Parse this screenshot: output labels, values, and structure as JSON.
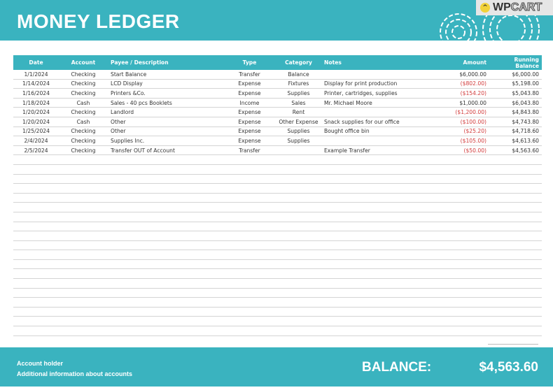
{
  "header": {
    "title": "MONEY LEDGER",
    "logo_text": "WPCART",
    "accent": "#3ab3bf"
  },
  "table": {
    "columns": [
      "Date",
      "Account",
      "Payee / Description",
      "Type",
      "Category",
      "Notes",
      "Amount",
      "Running Balance"
    ],
    "rows": [
      [
        "1/1/2024",
        "Checking",
        "Start Balance",
        "Transfer",
        "Balance",
        "",
        "$6,000.00",
        "$6,000.00"
      ],
      [
        "1/14/2024",
        "Checking",
        "LCD Display",
        "Expense",
        "Fixtures",
        "Display for print production",
        "($802.00)",
        "$5,198.00"
      ],
      [
        "1/16/2024",
        "Checking",
        "Printers &Co.",
        "Expense",
        "Supplies",
        "Printer, cartridges, supplies",
        "($154.20)",
        "$5,043.80"
      ],
      [
        "1/18/2024",
        "Cash",
        "Sales - 40 pcs Booklets",
        "Income",
        "Sales",
        "Mr. Michael Moore",
        "$1,000.00",
        "$6,043.80"
      ],
      [
        "1/20/2024",
        "Checking",
        "Landlord",
        "Expense",
        "Rent",
        "",
        "($1,200.00)",
        "$4,843.80"
      ],
      [
        "1/20/2024",
        "Cash",
        "Other",
        "Expense",
        "Other Expense",
        "Snack supplies for our office",
        "($100.00)",
        "$4,743.80"
      ],
      [
        "1/25/2024",
        "Checking",
        "Other",
        "Expense",
        "Supplies",
        "Bought office bin",
        "($25.20)",
        "$4,718.60"
      ],
      [
        "2/4/2024",
        "Checking",
        "Supplies Inc.",
        "Expense",
        "Supplies",
        "",
        "($105.00)",
        "$4,613.60"
      ],
      [
        "2/5/2024",
        "Checking",
        "Transfer OUT of Account",
        "Transfer",
        "",
        "Example Transfer",
        "($50.00)",
        "$4,563.60"
      ]
    ]
  },
  "footer": {
    "line1": "Account holder",
    "line2": "Additional information about accounts",
    "balance_label": "BALANCE:",
    "balance_value": "$4,563.60"
  }
}
